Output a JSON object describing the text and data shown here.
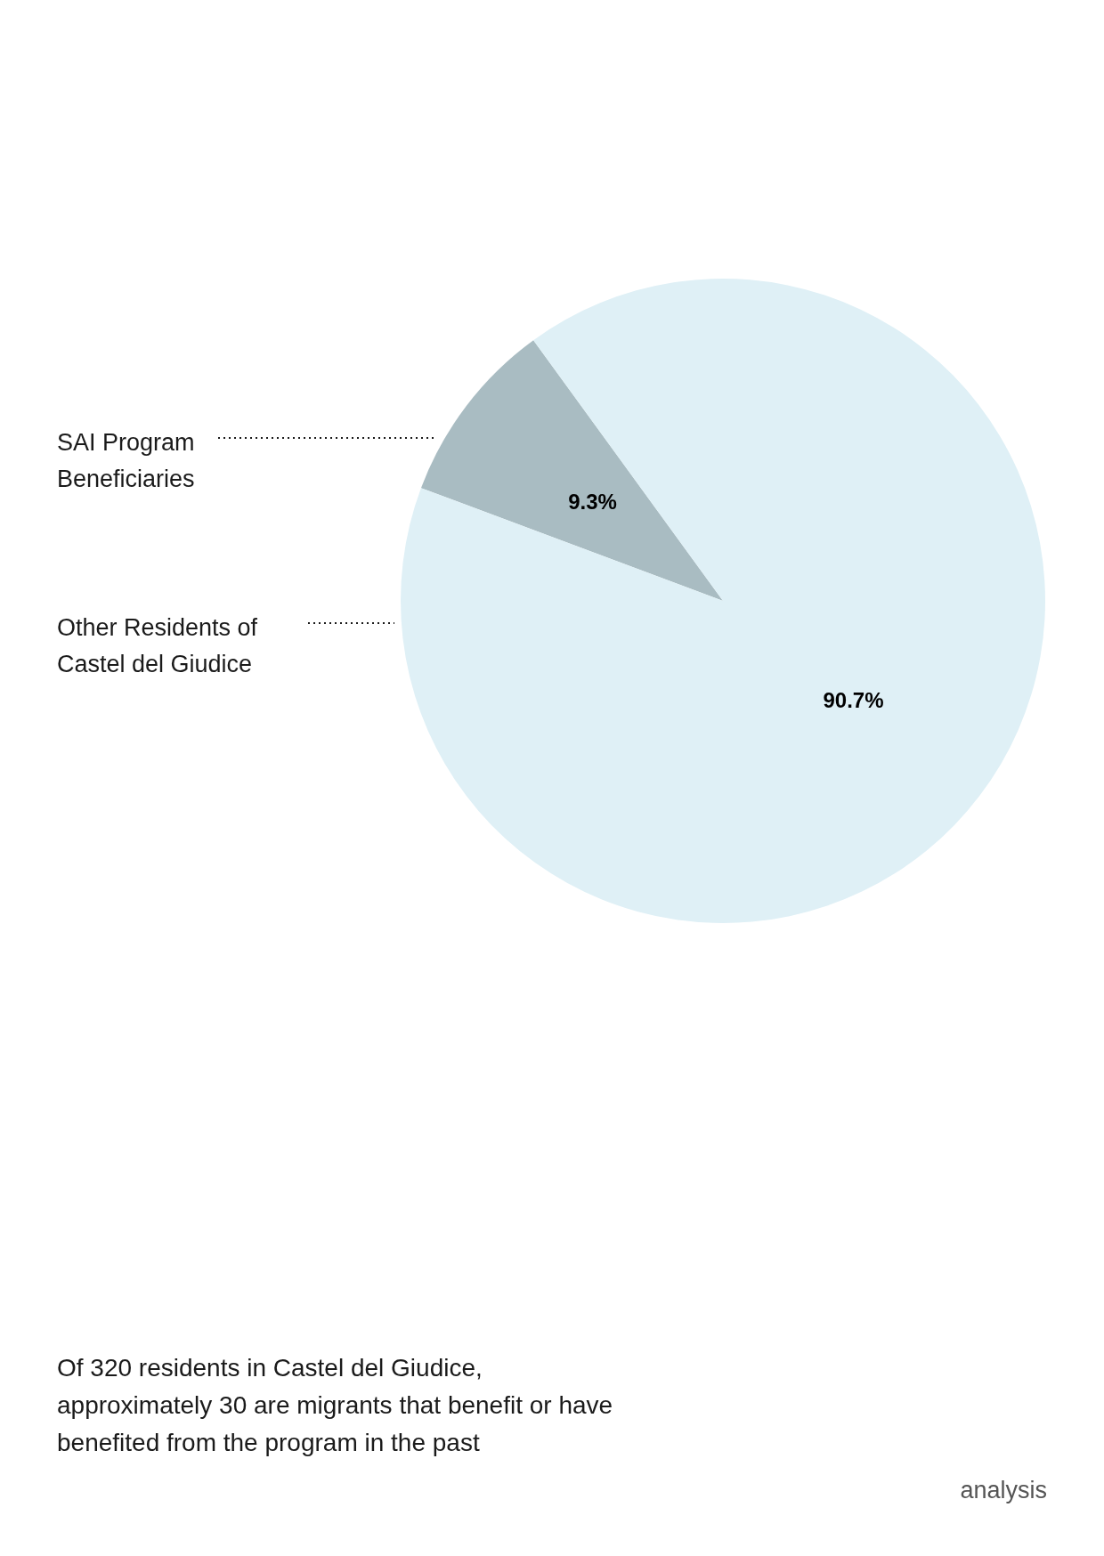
{
  "chart_data": {
    "type": "pie",
    "categories": [
      "SAI Program\nBeneficiaries",
      "Other Residents of\nCastel del Giudice"
    ],
    "values": [
      9.3,
      90.7
    ],
    "colors": [
      "#a9bcc2",
      "#dff0f6"
    ],
    "value_labels": [
      "9.3%",
      "90.7%"
    ],
    "annotations": [
      "Of 320 residents in Castel del Giudice,\napproximately 30 are migrants that benefit or have\nbenefited from the program in the past",
      "analysis"
    ]
  }
}
